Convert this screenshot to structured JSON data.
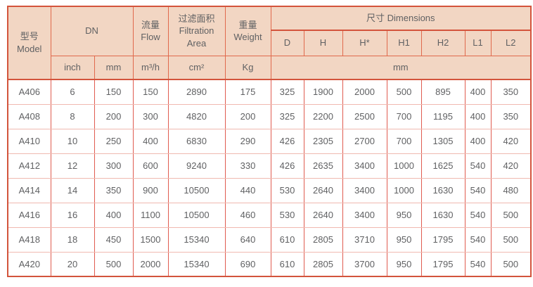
{
  "colors": {
    "header_bg": "#f2d6c3",
    "border_strong": "#d3543c",
    "border_header": "#e0694c",
    "border_col": "#e05c50",
    "border_row": "#f0b9b0",
    "text": "#606163"
  },
  "table": {
    "header": {
      "model_zh": "型号",
      "model_en": "Model",
      "dn": "DN",
      "flow_zh": "流量",
      "flow_en": "Flow",
      "filtration_zh": "过滤面积",
      "filtration_en": "Filtration Area",
      "weight_zh": "重量",
      "weight_en": "Weight",
      "dimensions": "尺寸 Dimensions",
      "dim_cols": [
        "D",
        "H",
        "H*",
        "H1",
        "H2",
        "L1",
        "L2"
      ],
      "unit_inch": "inch",
      "unit_mm": "mm",
      "unit_flow": "m³/h",
      "unit_area": "cm²",
      "unit_weight": "Kg",
      "unit_dims": "mm"
    },
    "rows": [
      {
        "model": "A406",
        "values": [
          "6",
          "150",
          "150",
          "2890",
          "175",
          "325",
          "1900",
          "2000",
          "500",
          "895",
          "400",
          "350"
        ]
      },
      {
        "model": "A408",
        "values": [
          "8",
          "200",
          "300",
          "4820",
          "200",
          "325",
          "2200",
          "2500",
          "700",
          "1195",
          "400",
          "350"
        ]
      },
      {
        "model": "A410",
        "values": [
          "10",
          "250",
          "400",
          "6830",
          "290",
          "426",
          "2305",
          "2700",
          "700",
          "1305",
          "400",
          "420"
        ]
      },
      {
        "model": "A412",
        "values": [
          "12",
          "300",
          "600",
          "9240",
          "330",
          "426",
          "2635",
          "3400",
          "1000",
          "1625",
          "540",
          "420"
        ]
      },
      {
        "model": "A414",
        "values": [
          "14",
          "350",
          "900",
          "10500",
          "440",
          "530",
          "2640",
          "3400",
          "1000",
          "1630",
          "540",
          "480"
        ]
      },
      {
        "model": "A416",
        "values": [
          "16",
          "400",
          "1100",
          "10500",
          "460",
          "530",
          "2640",
          "3400",
          "950",
          "1630",
          "540",
          "500"
        ]
      },
      {
        "model": "A418",
        "values": [
          "18",
          "450",
          "1500",
          "15340",
          "640",
          "610",
          "2805",
          "3710",
          "950",
          "1795",
          "540",
          "500"
        ]
      },
      {
        "model": "A420",
        "values": [
          "20",
          "500",
          "2000",
          "15340",
          "690",
          "610",
          "2805",
          "3700",
          "950",
          "1795",
          "540",
          "500"
        ]
      }
    ]
  }
}
